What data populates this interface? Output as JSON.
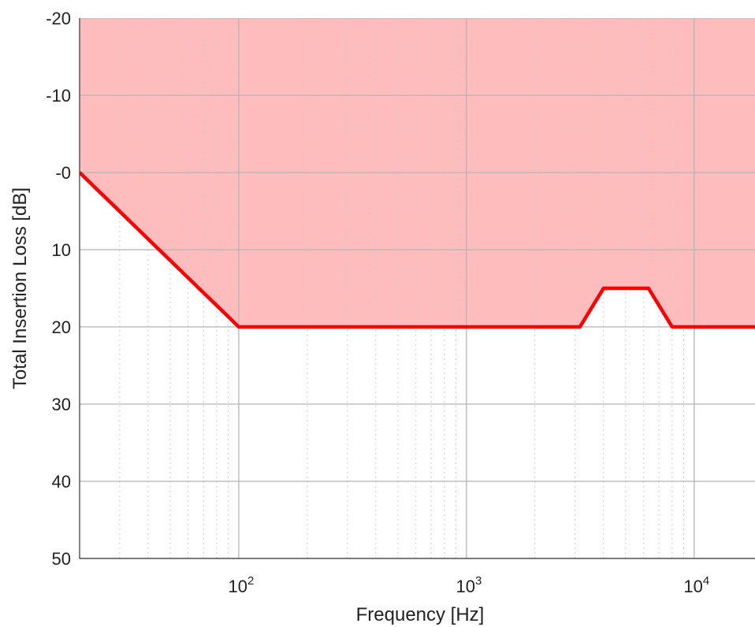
{
  "chart_data": {
    "type": "area",
    "title": "",
    "xlabel": "Frequency [Hz]",
    "ylabel": "Total Insertion Loss [dB]",
    "x_scale": "log",
    "xlim": [
      20,
      18500
    ],
    "ylim": [
      -20,
      50
    ],
    "y_inverted": true,
    "grid": true,
    "legend": "none",
    "x_ticks": [
      {
        "value": 100,
        "base": "10",
        "exp": "2"
      },
      {
        "value": 1000,
        "base": "10",
        "exp": "3"
      },
      {
        "value": 10000,
        "base": "10",
        "exp": "4"
      }
    ],
    "y_ticks": [
      {
        "value": -20,
        "label": "-20"
      },
      {
        "value": -10,
        "label": "-10"
      },
      {
        "value": 0,
        "label": "-0"
      },
      {
        "value": 10,
        "label": "10"
      },
      {
        "value": 20,
        "label": "20"
      },
      {
        "value": 30,
        "label": "30"
      },
      {
        "value": 40,
        "label": "40"
      },
      {
        "value": 50,
        "label": "50"
      }
    ],
    "series": [
      {
        "x": [
          20,
          100,
          3150,
          4000,
          6300,
          8000,
          18500
        ],
        "y": [
          0,
          20,
          20,
          15,
          15,
          20,
          20
        ],
        "color": "#ff0000",
        "fill": "above",
        "fill_color": "#ffbcbc"
      }
    ]
  }
}
